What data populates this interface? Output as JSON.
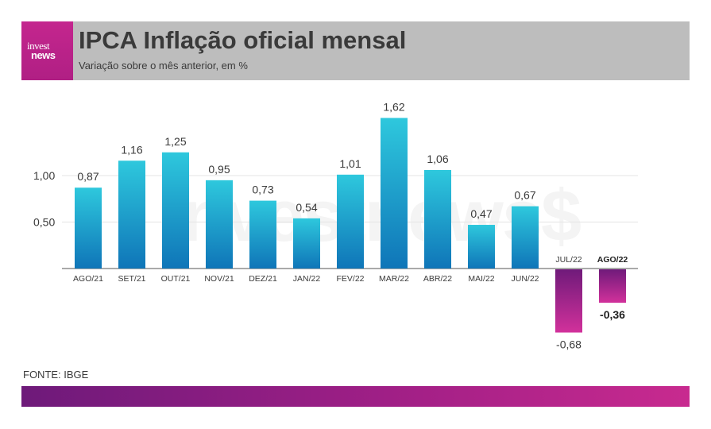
{
  "header": {
    "title": "IPCA   Inflação oficial mensal",
    "subtitle": "Variação sobre o mês anterior, em %",
    "logo_top": "invest",
    "logo_bottom": "news"
  },
  "watermark": "investnews$",
  "footer": {
    "source": "FONTE: IBGE"
  },
  "colors": {
    "positive_top": "#2ec8dd",
    "positive_bottom": "#0f75b8",
    "negative_top": "#6f1a7a",
    "negative_bottom": "#d2319b",
    "header_bg": "#bdbdbd",
    "brand_magenta": "#c4268e"
  },
  "chart_data": {
    "type": "bar",
    "categories": [
      "AGO/21",
      "SET/21",
      "OUT/21",
      "NOV/21",
      "DEZ/21",
      "JAN/22",
      "FEV/22",
      "MAR/22",
      "ABR/22",
      "MAI/22",
      "JUN/22",
      "JUL/22",
      "AGO/22"
    ],
    "values": [
      0.87,
      1.16,
      1.25,
      0.95,
      0.73,
      0.54,
      1.01,
      1.62,
      1.06,
      0.47,
      0.67,
      -0.68,
      -0.36
    ],
    "value_labels": [
      "0,87",
      "1,16",
      "1,25",
      "0,95",
      "0,73",
      "0,54",
      "1,01",
      "1,62",
      "1,06",
      "0,47",
      "0,67",
      "-0,68",
      "-0,36"
    ],
    "highlight": "AGO/22",
    "yticks": [
      0.5,
      1.0
    ],
    "ytick_labels": [
      "0,50",
      "1,00"
    ],
    "ylim": [
      -0.7,
      1.7
    ],
    "grid": true,
    "title": "IPCA   Inflação oficial mensal",
    "xlabel": "",
    "ylabel": ""
  }
}
